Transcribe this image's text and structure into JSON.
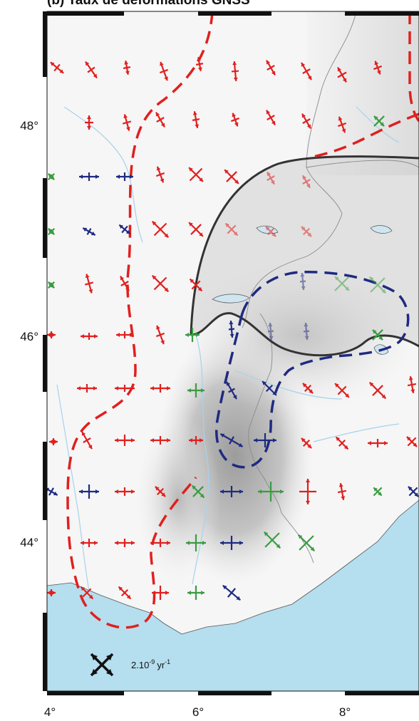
{
  "title": "(b) Taux de déformations GNSS",
  "axes": {
    "x_ticks": [
      "4°",
      "6°",
      "8°"
    ],
    "y_ticks": [
      "48°",
      "46°",
      "44°"
    ]
  },
  "legend": {
    "scale_value": "2.10",
    "scale_exponent": "-9",
    "scale_unit": "yr",
    "scale_unit_exponent": "-1"
  },
  "colors": {
    "red": "#e0201e",
    "blue": "#1f2a80",
    "green": "#3a9c42",
    "sea": "#b5deee",
    "river": "#a7d2ea"
  }
}
